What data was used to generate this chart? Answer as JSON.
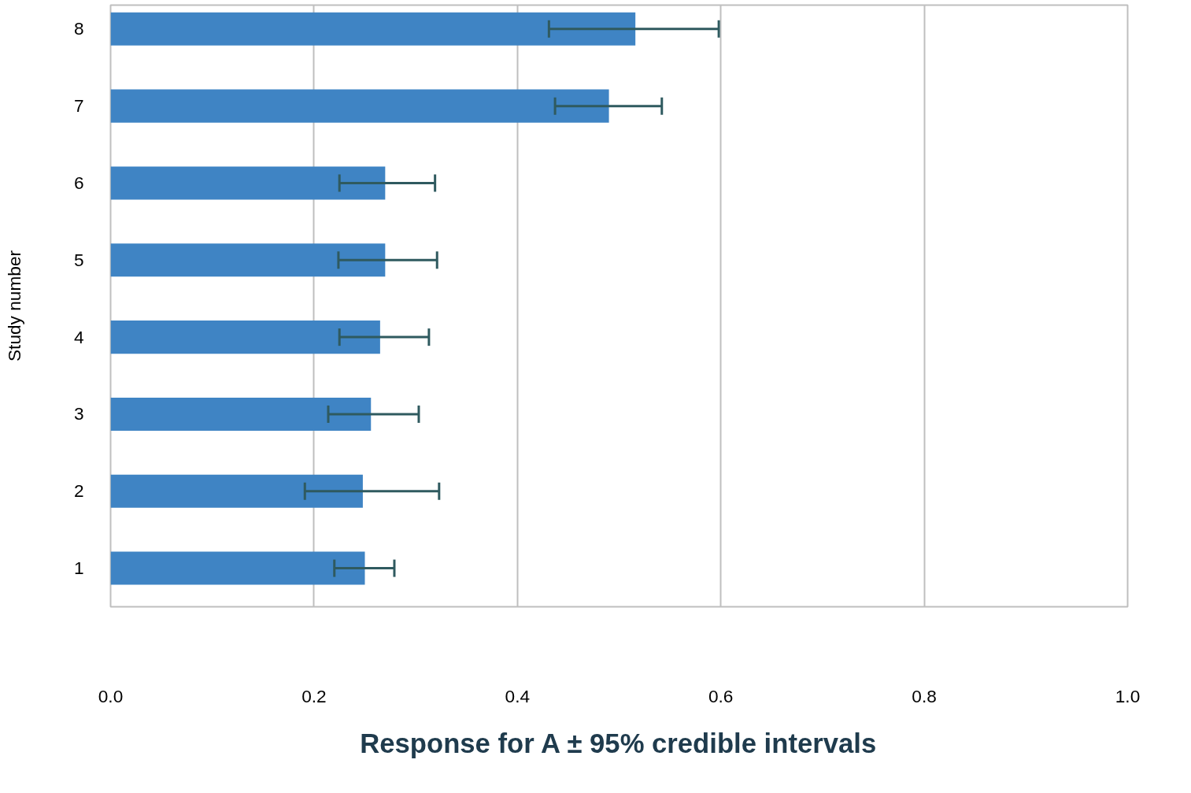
{
  "chart_data": {
    "type": "bar",
    "orientation": "horizontal",
    "xlabel": "Response for A ± 95% credible intervals",
    "ylabel": "Study number",
    "categories": [
      "8",
      "7",
      "6",
      "5",
      "4",
      "3",
      "2",
      "1"
    ],
    "values": [
      0.516,
      0.49,
      0.27,
      0.27,
      0.265,
      0.256,
      0.248,
      0.25
    ],
    "errors": [
      [
        0.431,
        0.598
      ],
      [
        0.437,
        0.542
      ],
      [
        0.225,
        0.319
      ],
      [
        0.224,
        0.321
      ],
      [
        0.225,
        0.313
      ],
      [
        0.214,
        0.303
      ],
      [
        0.191,
        0.323
      ],
      [
        0.22,
        0.279
      ]
    ],
    "color": "#3f84c4",
    "xlim": [
      0.0,
      1.0
    ],
    "xticks": [
      {
        "value": 0,
        "label": "0.0"
      },
      {
        "value": 0.2,
        "label": "0.2"
      },
      {
        "value": 0.4,
        "label": "0.4"
      },
      {
        "value": 0.6,
        "label": "0.6"
      },
      {
        "value": 0.8,
        "label": "0.8"
      },
      {
        "value": 1.0,
        "label": "1.0"
      }
    ],
    "grid": "x"
  }
}
